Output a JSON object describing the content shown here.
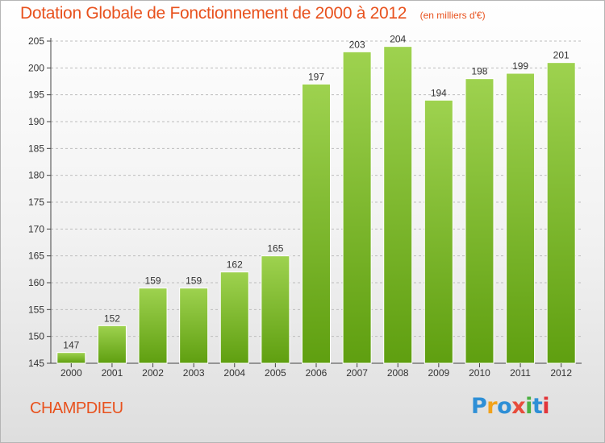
{
  "header": {
    "title": "Dotation Globale de Fonctionnement de 2000 à 2012",
    "unit": "(en milliers d'€)"
  },
  "commune": "CHAMPDIEU",
  "logo": {
    "text": "Proxiti",
    "letters": [
      "P",
      "r",
      "o",
      "x",
      "i",
      "t",
      "i"
    ]
  },
  "colors": {
    "accent": "#e8521e",
    "bar_top": "#9ed24f",
    "bar_bottom": "#5f9f10",
    "grid": "#bdbdbd"
  },
  "chart_data": {
    "type": "bar",
    "title": "Dotation Globale de Fonctionnement de 2000 à 2012",
    "subtitle": "(en milliers d'€)",
    "xlabel": "",
    "ylabel": "",
    "categories": [
      "2000",
      "2001",
      "2002",
      "2003",
      "2004",
      "2005",
      "2006",
      "2007",
      "2008",
      "2009",
      "2010",
      "2011",
      "2012"
    ],
    "values": [
      147,
      152,
      159,
      159,
      162,
      165,
      197,
      203,
      204,
      194,
      198,
      199,
      201
    ],
    "ylim": [
      145,
      205
    ],
    "yticks": [
      145,
      150,
      155,
      160,
      165,
      170,
      175,
      180,
      185,
      190,
      195,
      200,
      205
    ],
    "grid": true,
    "data_labels": true
  }
}
